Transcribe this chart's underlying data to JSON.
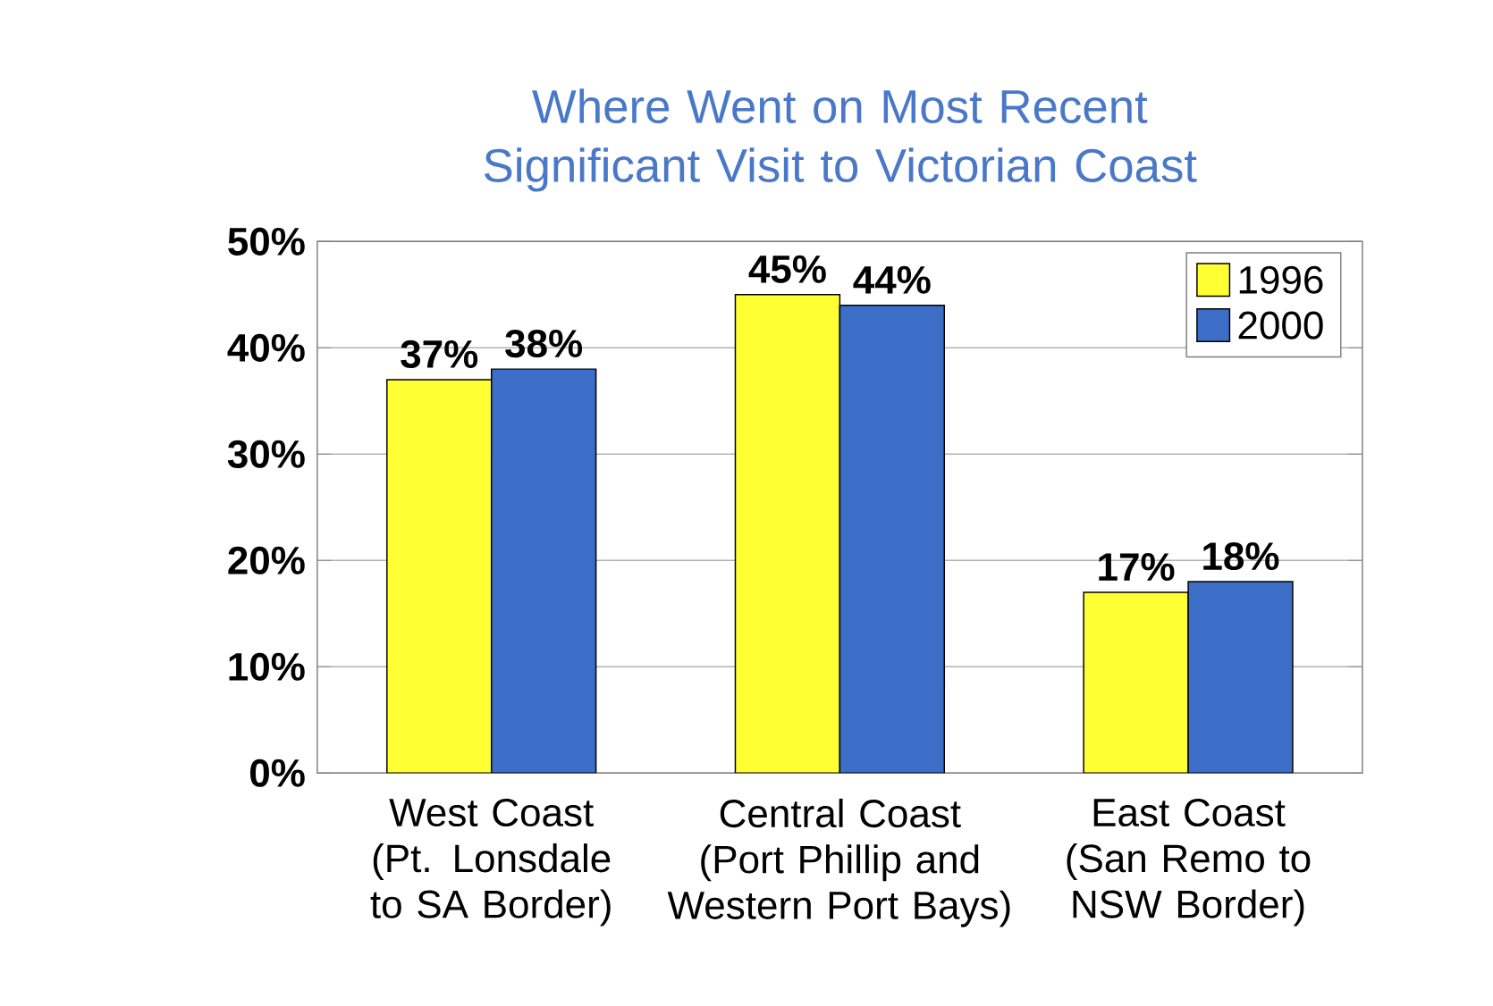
{
  "chart_data": {
    "type": "bar",
    "title": "Where Went on Most Recent Significant Visit to Victorian Coast",
    "categories": [
      "West Coast (Pt. Lonsdale to SA Border)",
      "Central Coast (Port Phillip and Western Port Bays)",
      "East Coast (San Remo to NSW Border)"
    ],
    "series": [
      {
        "name": "1996",
        "color": "#ffff33",
        "values": [
          37,
          45,
          17
        ],
        "value_labels": [
          "37%",
          "45%",
          "17%"
        ]
      },
      {
        "name": "2000",
        "color": "#3c6ec8",
        "values": [
          38,
          44,
          18
        ],
        "value_labels": [
          "38%",
          "44%",
          "18%"
        ]
      }
    ],
    "ylim": [
      0,
      50
    ],
    "yticks": [
      {
        "value": 0,
        "label": "0%"
      },
      {
        "value": 10,
        "label": "10%"
      },
      {
        "value": 20,
        "label": "20%"
      },
      {
        "value": 30,
        "label": "30%"
      },
      {
        "value": 40,
        "label": "40%"
      },
      {
        "value": 50,
        "label": "50%"
      }
    ],
    "grid": "y",
    "legend": "top right"
  }
}
